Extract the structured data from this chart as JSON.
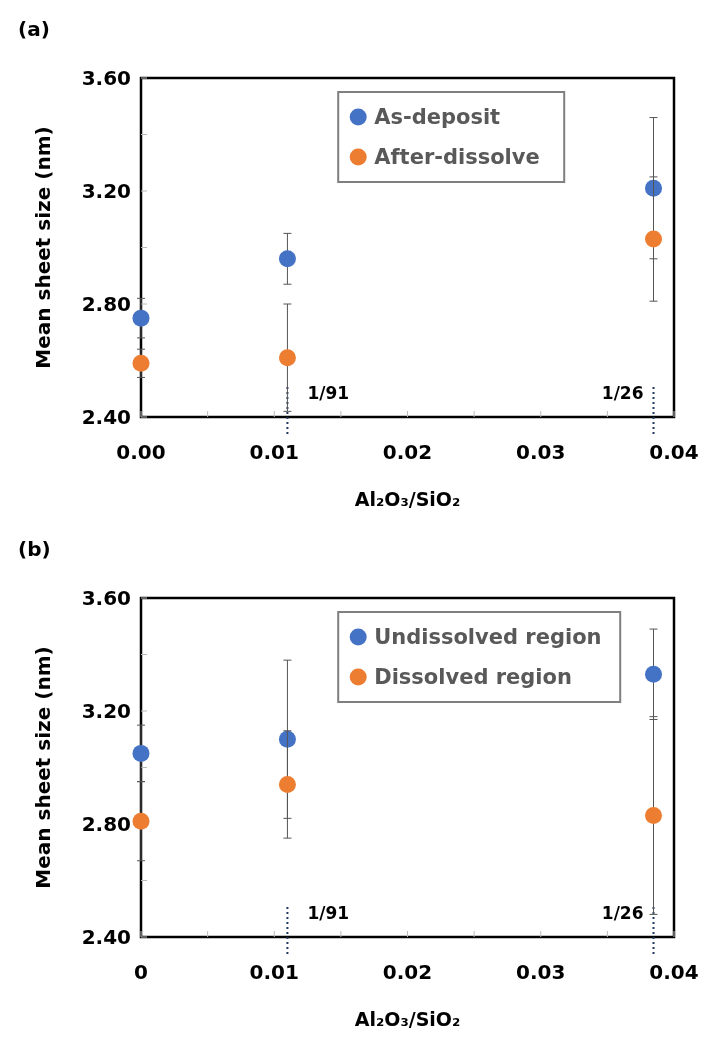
{
  "chart_data": [
    {
      "type": "scatter",
      "title": "(a)",
      "xlabel": "Al₂O₃/SiO₂",
      "ylabel": "Mean sheet size (nm)",
      "x": [
        0,
        0.010989,
        0.038462
      ],
      "xlim": [
        0,
        0.04
      ],
      "ylim": [
        2.4,
        3.6
      ],
      "xticks": [
        {
          "value": 0,
          "label": "0.00"
        },
        {
          "value": 0.005,
          "label": null
        },
        0.01,
        {
          "value": 0.015,
          "label": null
        },
        0.02,
        {
          "value": 0.025,
          "label": null
        },
        0.03,
        {
          "value": 0.035,
          "label": null
        },
        0.04
      ],
      "yticks": [
        {
          "value": 2.4,
          "label": "2.40"
        },
        {
          "value": 2.6,
          "label": null
        },
        {
          "value": 2.8,
          "label": "2.80"
        },
        {
          "value": 3.0,
          "label": null
        },
        {
          "value": 3.2,
          "label": "3.20"
        },
        {
          "value": 3.4,
          "label": null
        },
        {
          "value": 3.6,
          "label": "3.60"
        }
      ],
      "series": [
        {
          "name": "As-deposit",
          "color": "#4472c4",
          "values": [
            2.75,
            2.96,
            3.21
          ],
          "errors": [
            0.07,
            0.09,
            0.25
          ]
        },
        {
          "name": "After-dissolve",
          "color": "#ed7d31",
          "values": [
            2.59,
            2.61,
            3.03
          ],
          "errors": [
            0.05,
            0.19,
            0.22
          ]
        }
      ],
      "ref_lines": [
        {
          "axis": "x",
          "value": 0.010989,
          "color": "#1f3864",
          "line_style": "dotted"
        },
        {
          "axis": "x",
          "value": 0.038462,
          "color": "#1f3864",
          "line_style": "dotted"
        }
      ],
      "annotations": [
        "1/91",
        "1/26"
      ],
      "legend": "top",
      "marker": "circle",
      "grid": false
    },
    {
      "type": "scatter",
      "title": "(b)",
      "xlabel": "Al₂O₃/SiO₂",
      "ylabel": "Mean sheet size (nm)",
      "x": [
        0,
        0.010989,
        0.038462
      ],
      "xlim": [
        0,
        0.04
      ],
      "ylim": [
        2.4,
        3.6
      ],
      "xticks": [
        0,
        {
          "value": 0.005,
          "label": null
        },
        0.01,
        {
          "value": 0.015,
          "label": null
        },
        0.02,
        {
          "value": 0.025,
          "label": null
        },
        0.03,
        {
          "value": 0.035,
          "label": null
        },
        0.04
      ],
      "yticks": [
        {
          "value": 2.4,
          "label": "2.40"
        },
        {
          "value": 2.6,
          "label": null
        },
        {
          "value": 2.8,
          "label": "2.80"
        },
        {
          "value": 3.0,
          "label": null
        },
        {
          "value": 3.2,
          "label": "3.20"
        },
        {
          "value": 3.4,
          "label": null
        },
        {
          "value": 3.6,
          "label": "3.60"
        }
      ],
      "series": [
        {
          "name": "Undissolved region",
          "color": "#4472c4",
          "values": [
            3.05,
            3.1,
            3.33
          ],
          "errors": [
            0.1,
            0.28,
            0.16
          ]
        },
        {
          "name": "Dissolved region",
          "color": "#ed7d31",
          "values": [
            2.81,
            2.94,
            2.83
          ],
          "errors": [
            0.14,
            0.19,
            0.35
          ]
        }
      ],
      "ref_lines": [
        {
          "axis": "x",
          "value": 0.010989,
          "color": "#1f3864",
          "line_style": "dotted"
        },
        {
          "axis": "x",
          "value": 0.038462,
          "color": "#1f3864",
          "line_style": "dotted"
        }
      ],
      "annotations": [
        "1/91",
        "1/26"
      ],
      "legend": "top",
      "marker": "circle",
      "grid": false
    }
  ]
}
